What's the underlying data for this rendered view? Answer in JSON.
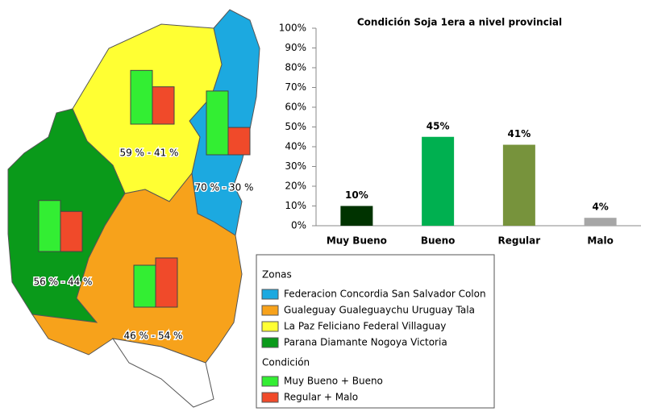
{
  "chart_data": [
    {
      "type": "bar",
      "title": "Condición  Soja 1era a nivel provincial",
      "categories": [
        "Muy Bueno",
        "Bueno",
        "Regular",
        "Malo"
      ],
      "values": [
        10,
        45,
        41,
        4
      ],
      "value_labels": [
        "10%",
        "45%",
        "41%",
        "4%"
      ],
      "colors": [
        "#003300",
        "#00b050",
        "#77933c",
        "#a6a6a6"
      ],
      "ylim": [
        0,
        100
      ],
      "yticks": [
        {
          "value": 0,
          "label": "0%"
        },
        {
          "value": 10,
          "label": "10%"
        },
        {
          "value": 20,
          "label": "20%"
        },
        {
          "value": 30,
          "label": "30%"
        },
        {
          "value": 40,
          "label": "40%"
        },
        {
          "value": 50,
          "label": "50%"
        },
        {
          "value": 60,
          "label": "60%"
        },
        {
          "value": 70,
          "label": "70%"
        },
        {
          "value": 80,
          "label": "80%"
        },
        {
          "value": 90,
          "label": "90%"
        },
        {
          "value": 100,
          "label": "100%"
        }
      ]
    },
    {
      "type": "map",
      "zones_title": "Zonas",
      "zones": [
        {
          "name": "Federacion Concordia San Salvador Colon",
          "color": "#1ca9e0",
          "values": [
            70,
            30
          ],
          "label": "70 % - 30 %"
        },
        {
          "name": "Gualeguay Gualeguaychu Uruguay  Tala",
          "color": "#f7a21b",
          "values": [
            46,
            54
          ],
          "label": "46 % - 54 %"
        },
        {
          "name": "La Paz Feliciano Federal  Villaguay",
          "color": "#ffff33",
          "values": [
            59,
            41
          ],
          "label": "59 % - 41 %"
        },
        {
          "name": "Parana Diamante Nogoya Victoria",
          "color": "#0a9a1a",
          "values": [
            56,
            44
          ],
          "label": "56 % - 44 %"
        }
      ],
      "condition_title": "Condición",
      "conditions": [
        {
          "name": "Muy Bueno + Bueno",
          "color": "#33ee33"
        },
        {
          "name": "Regular + Malo",
          "color": "#f04a2a"
        }
      ]
    }
  ]
}
